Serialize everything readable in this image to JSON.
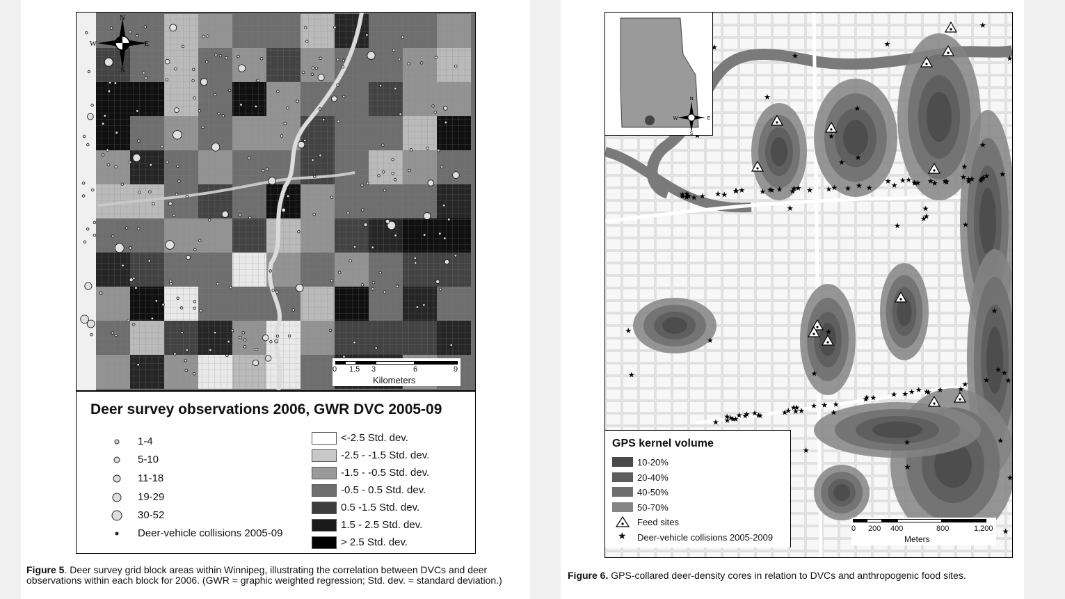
{
  "figure5": {
    "legend": {
      "title": "Deer survey observations 2006, GWR DVC 2005-09",
      "sizes": [
        "1-4",
        "5-10",
        "11-18",
        "19-29",
        "30-52"
      ],
      "collisions_label": "Deer-vehicle collisions 2005-09",
      "std_dev_classes": [
        {
          "label": "<-2.5 Std. dev.",
          "color": "#ffffff"
        },
        {
          "label": "-2.5 - -1.5 Std. dev.",
          "color": "#c8c8c8"
        },
        {
          "label": "-1.5 - -0.5 Std. dev.",
          "color": "#9a9a9a"
        },
        {
          "label": "-0.5 - 0.5 Std. dev.",
          "color": "#6e6e6e"
        },
        {
          "label": "0.5 -1.5 Std. dev.",
          "color": "#3c3c3c"
        },
        {
          "label": "1.5 - 2.5 Std. dev.",
          "color": "#1a1a1a"
        },
        {
          "label": "> 2.5 Std. dev.",
          "color": "#000000"
        }
      ]
    },
    "scale": {
      "ticks": [
        "0",
        "1.5",
        "3",
        "6",
        "9"
      ],
      "unit": "Kilometers"
    },
    "compass": {
      "n": "N",
      "s": "S",
      "e": "E",
      "w": "W"
    },
    "caption_label": "Figure 5",
    "caption_text": ". Deer survey grid block areas within Winnipeg, illustrating the correlation between DVCs and deer observations within each block for 2006. (GWR = graphic weighted regression; Std. dev. = standard deviation.)"
  },
  "figure6": {
    "legend": {
      "title": "GPS kernel volume",
      "classes": [
        {
          "label": "10-20%",
          "color": "#4a4a4a"
        },
        {
          "label": "20-40%",
          "color": "#5c5c5c"
        },
        {
          "label": "40-50%",
          "color": "#6e6e6e"
        },
        {
          "label": "50-70%",
          "color": "#848484"
        }
      ],
      "feed_sites_label": "Feed sites",
      "collisions_label": "Deer-vehicle collisions 2005-2009"
    },
    "scale": {
      "ticks": [
        "0",
        "200",
        "400",
        "800",
        "1,200"
      ],
      "unit": "Meters"
    },
    "compass": {
      "n": "N",
      "s": "S",
      "e": "E",
      "w": "W"
    },
    "caption_label": "Figure 6.",
    "caption_text": " GPS-collared deer-density cores in relation to DVCs and anthropogenic food sites."
  }
}
